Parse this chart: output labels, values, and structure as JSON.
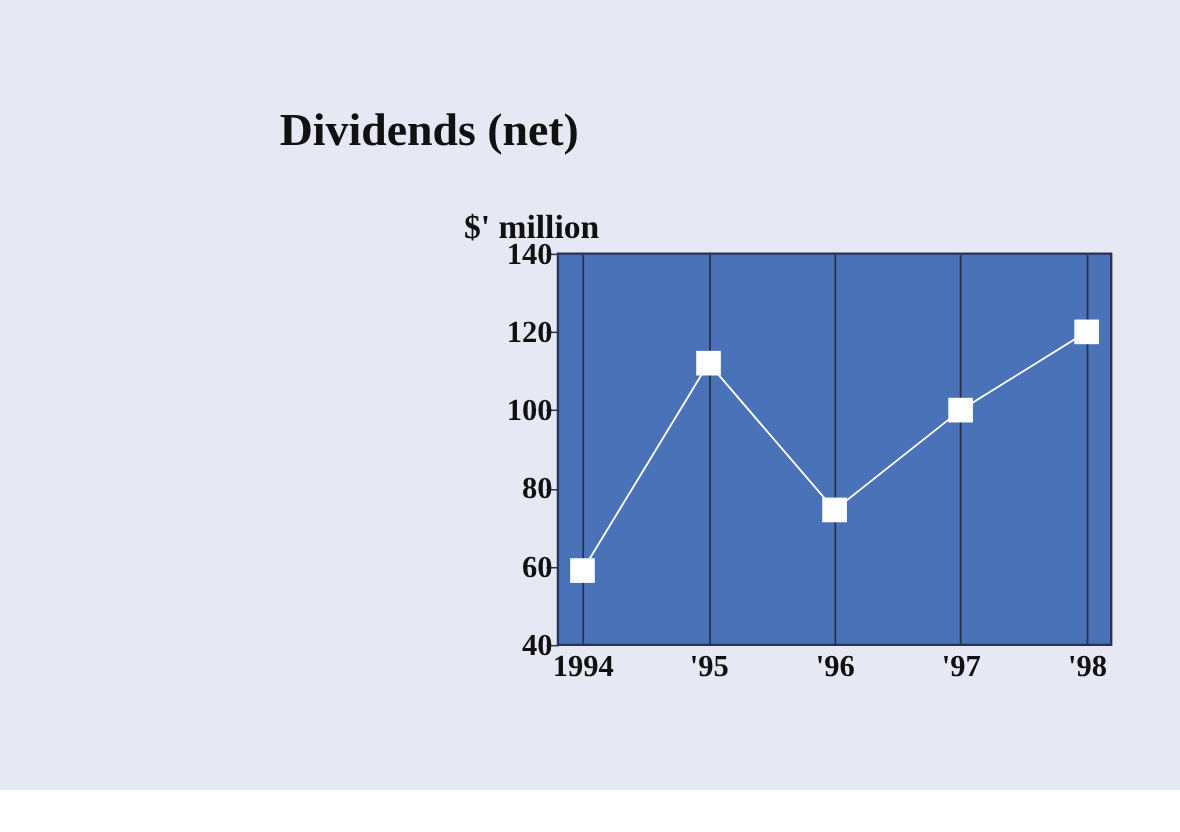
{
  "chart_data": {
    "type": "line",
    "title": "Dividends (net)",
    "ylabel": "$' million",
    "categories": [
      "1994",
      "'95",
      "'96",
      "'97",
      "'98"
    ],
    "series": [
      {
        "color": "#ffffff",
        "values": [
          59,
          112,
          74.5,
          100,
          120
        ]
      }
    ],
    "ylim": [
      40,
      140
    ],
    "yticks": [
      40,
      60,
      80,
      100,
      120,
      140
    ],
    "grid": "x",
    "marker": "square",
    "line_style": "solid",
    "legend": false
  }
}
